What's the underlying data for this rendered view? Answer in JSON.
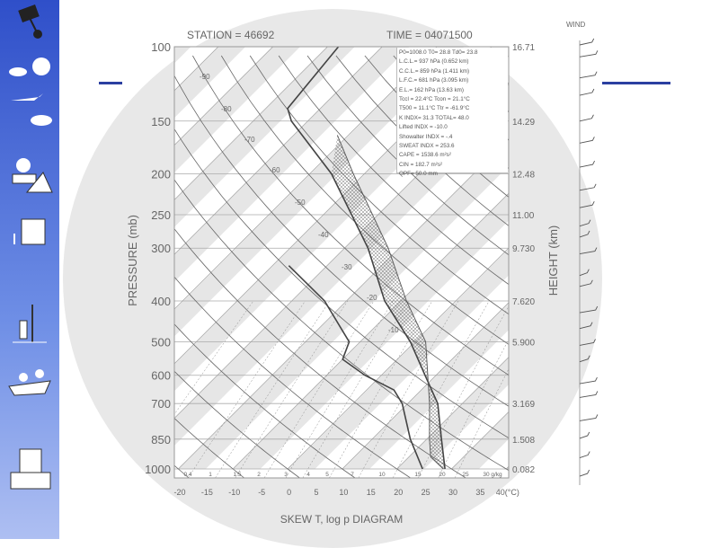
{
  "colors": {
    "sidebar": "#3d5ed6",
    "accent_bar": "#2b3fa0",
    "lines": "#777777",
    "profile": "#444444"
  },
  "sidebar": {
    "icons": [
      "satellite-icon",
      "balloon-cloud-airplane-icon",
      "radar-station-icon",
      "weather-office-icon",
      "weather-buoy-icon",
      "research-ship-icon",
      "observatory-building-icon"
    ]
  },
  "chart_data": {
    "type": "line",
    "title": "SKEW T, log p DIAGRAM",
    "header": {
      "station": "STATION = 46692",
      "time": "TIME = 04071500"
    },
    "ylabel": "PRESSURE (mb)",
    "ylabel_right": "HEIGHT (km)",
    "y_scale": "log",
    "ylim": [
      1000,
      100
    ],
    "xlim": [
      -20,
      40
    ],
    "x_ticks": [
      "-20",
      "-15",
      "-10",
      "-5",
      "0",
      "5",
      "10",
      "15",
      "20",
      "25",
      "30",
      "35",
      "40(°C)"
    ],
    "pressure_ticks": [
      100,
      150,
      200,
      250,
      300,
      400,
      500,
      600,
      700,
      850,
      1000
    ],
    "height_ticks": [
      {
        "p": 100,
        "label": "16.71"
      },
      {
        "p": 150,
        "label": "14.29"
      },
      {
        "p": 200,
        "label": "12.48"
      },
      {
        "p": 250,
        "label": "11.00"
      },
      {
        "p": 300,
        "label": "9.730"
      },
      {
        "p": 400,
        "label": "7.620"
      },
      {
        "p": 500,
        "label": "5.900"
      },
      {
        "p": 700,
        "label": "3.169"
      },
      {
        "p": 850,
        "label": "1.508"
      },
      {
        "p": 1000,
        "label": "0.082"
      }
    ],
    "mixing_ratio_labels": [
      "0.4",
      "1",
      "1.5",
      "2",
      "3",
      "4",
      "5",
      "7",
      "10",
      "15",
      "20",
      "25",
      "30 g/kg"
    ],
    "isotherm_labels": [
      "-90",
      "-80",
      "-70",
      "-60",
      "-50",
      "-40",
      "-30",
      "-20",
      "-10"
    ],
    "series": [
      {
        "key": "temperature",
        "points": [
          [
            1000,
            28.8
          ],
          [
            850,
            22.7
          ],
          [
            700,
            15.5
          ],
          [
            600,
            8
          ],
          [
            500,
            -0.8
          ],
          [
            400,
            -13
          ],
          [
            300,
            -25.7
          ],
          [
            200,
            -46
          ],
          [
            150,
            -63
          ],
          [
            140,
            -66
          ],
          [
            100,
            -68
          ]
        ]
      },
      {
        "key": "dewpoint",
        "points": [
          [
            1000,
            24.7
          ],
          [
            850,
            17
          ],
          [
            700,
            9
          ],
          [
            650,
            5
          ],
          [
            600,
            -3
          ],
          [
            550,
            -10
          ],
          [
            500,
            -12
          ],
          [
            400,
            -24
          ],
          [
            330,
            -37
          ]
        ]
      },
      {
        "key": "parcel",
        "points": [
          [
            1000,
            28.5
          ],
          [
            937,
            24
          ],
          [
            850,
            20.5
          ],
          [
            700,
            14
          ],
          [
            500,
            2
          ],
          [
            400,
            -9
          ],
          [
            300,
            -22
          ],
          [
            200,
            -42
          ],
          [
            162,
            -52
          ]
        ]
      }
    ],
    "grid": true,
    "wind_label": "WIND",
    "indices": [
      "P0=1008.0 T0= 28.8 Td0= 23.8",
      "L.C.L.= 937 hPa (0.652 km)",
      "C.C.L.= 859 hPa (1.411 km)",
      "L.F.C.= 681 hPa (3.095 km)",
      "E.L.= 162 hPa (13.63 km)",
      "Tccl = 22.4°C Tcon = 21.1°C",
      "T500 = 11.1°C Ttr = -61.9°C",
      "K INDX= 31.3 TOTAL= 48.0",
      "Lifted INDX = -10.0",
      "Showalter INDX = -.4",
      "SWEAT INDX = 253.6",
      "CAPE = 1538.6 m²s²",
      "CIN = 182.7 m²s²",
      "QPF= 50.0 mm"
    ]
  }
}
